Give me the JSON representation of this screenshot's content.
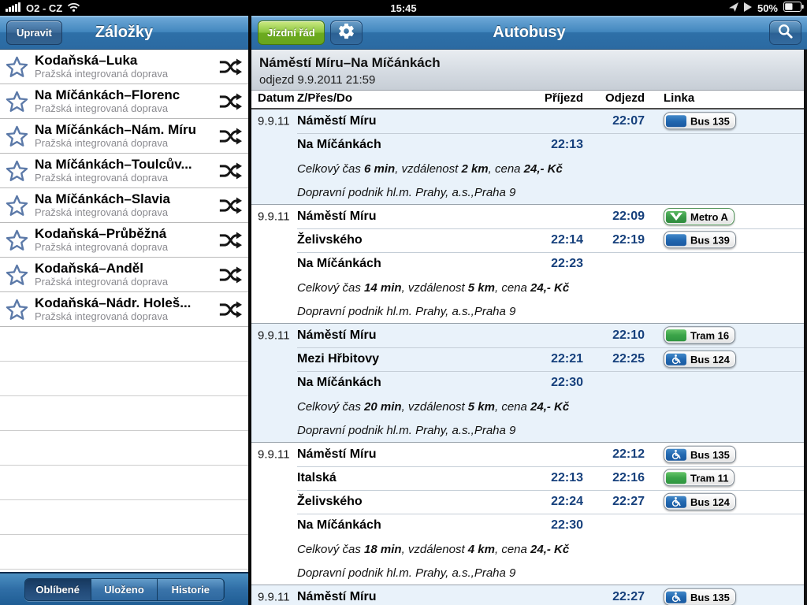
{
  "status_bar": {
    "carrier": "O2 - CZ",
    "time": "15:45",
    "battery_percent": "50%"
  },
  "sidebar": {
    "edit_button": "Upravit",
    "title": "Záložky",
    "items": [
      {
        "title": "Kodaňská–Luka",
        "subtitle": "Pražská integrovaná doprava"
      },
      {
        "title": "Na Míčánkách–Florenc",
        "subtitle": "Pražská integrovaná doprava"
      },
      {
        "title": "Na Míčánkách–Nám. Míru",
        "subtitle": "Pražská integrovaná doprava"
      },
      {
        "title": "Na Míčánkách–Toulcův...",
        "subtitle": "Pražská integrovaná doprava"
      },
      {
        "title": "Na Míčánkách–Slavia",
        "subtitle": "Pražská integrovaná doprava"
      },
      {
        "title": "Kodaňská–Průběžná",
        "subtitle": "Pražská integrovaná doprava"
      },
      {
        "title": "Kodaňská–Anděl",
        "subtitle": "Pražská integrovaná doprava"
      },
      {
        "title": "Kodaňská–Nádr. Holeš...",
        "subtitle": "Pražská integrovaná doprava"
      }
    ],
    "tabs": [
      {
        "label": "Oblíbené",
        "active": true
      },
      {
        "label": "Uloženo",
        "active": false
      },
      {
        "label": "Historie",
        "active": false
      }
    ]
  },
  "main": {
    "timetable_button": "Jízdní řád",
    "title": "Autobusy",
    "route": {
      "title": "Náměstí Míru–Na Míčánkách",
      "subtitle": "odjezd 9.9.2011 21:59"
    },
    "table_headers": [
      "Datum",
      "Z/Přes/Do",
      "Příjezd",
      "Odjezd",
      "Linka"
    ],
    "summary_labels": {
      "time": "Celkový čas",
      "distance": "vzdálenost",
      "price": "cena"
    },
    "connections": [
      {
        "date": "9.9.11",
        "legs": [
          {
            "station": "Náměstí Míru",
            "arrival": "",
            "departure": "22:07",
            "line": {
              "label": "Bus 135",
              "kind": "bus",
              "wheelchair": false
            }
          },
          {
            "station": "Na Míčánkách",
            "arrival": "22:13",
            "departure": "",
            "line": null
          }
        ],
        "summary": {
          "time": "6 min",
          "distance": "2 km",
          "price": "24,- Kč"
        },
        "operator": "Dopravní podnik hl.m. Prahy, a.s.,Praha 9"
      },
      {
        "date": "9.9.11",
        "legs": [
          {
            "station": "Náměstí Míru",
            "arrival": "",
            "departure": "22:09",
            "line": {
              "label": "Metro A",
              "kind": "metro",
              "wheelchair": false
            }
          },
          {
            "station": "Želivského",
            "arrival": "22:14",
            "departure": "22:19",
            "line": {
              "label": "Bus 139",
              "kind": "bus",
              "wheelchair": false
            }
          },
          {
            "station": "Na Míčánkách",
            "arrival": "22:23",
            "departure": "",
            "line": null
          }
        ],
        "summary": {
          "time": "14 min",
          "distance": "5 km",
          "price": "24,- Kč"
        },
        "operator": "Dopravní podnik hl.m. Prahy, a.s.,Praha 9"
      },
      {
        "date": "9.9.11",
        "legs": [
          {
            "station": "Náměstí Míru",
            "arrival": "",
            "departure": "22:10",
            "line": {
              "label": "Tram 16",
              "kind": "tram",
              "wheelchair": false
            }
          },
          {
            "station": "Mezi Hřbitovy",
            "arrival": "22:21",
            "departure": "22:25",
            "line": {
              "label": "Bus 124",
              "kind": "bus",
              "wheelchair": true
            }
          },
          {
            "station": "Na Míčánkách",
            "arrival": "22:30",
            "departure": "",
            "line": null
          }
        ],
        "summary": {
          "time": "20 min",
          "distance": "5 km",
          "price": "24,- Kč"
        },
        "operator": "Dopravní podnik hl.m. Prahy, a.s.,Praha 9"
      },
      {
        "date": "9.9.11",
        "legs": [
          {
            "station": "Náměstí Míru",
            "arrival": "",
            "departure": "22:12",
            "line": {
              "label": "Bus 135",
              "kind": "bus",
              "wheelchair": true
            }
          },
          {
            "station": "Italská",
            "arrival": "22:13",
            "departure": "22:16",
            "line": {
              "label": "Tram 11",
              "kind": "tram",
              "wheelchair": false
            }
          },
          {
            "station": "Želivského",
            "arrival": "22:24",
            "departure": "22:27",
            "line": {
              "label": "Bus 124",
              "kind": "bus",
              "wheelchair": true
            }
          },
          {
            "station": "Na Míčánkách",
            "arrival": "22:30",
            "departure": "",
            "line": null
          }
        ],
        "summary": {
          "time": "18 min",
          "distance": "4 km",
          "price": "24,- Kč"
        },
        "operator": "Dopravní podnik hl.m. Prahy, a.s.,Praha 9"
      },
      {
        "date": "9.9.11",
        "legs": [
          {
            "station": "Náměstí Míru",
            "arrival": "",
            "departure": "22:27",
            "line": {
              "label": "Bus 135",
              "kind": "bus",
              "wheelchair": true
            }
          }
        ],
        "summary": null,
        "operator": null
      }
    ]
  },
  "colors": {
    "bus_chip": "#2268b0",
    "tram_chip": "#3aa348",
    "metro_chip": "#3a9a48",
    "accent_green": "#8cc63f",
    "time_text": "#16407c",
    "row_tint": "#e9f2fa"
  }
}
